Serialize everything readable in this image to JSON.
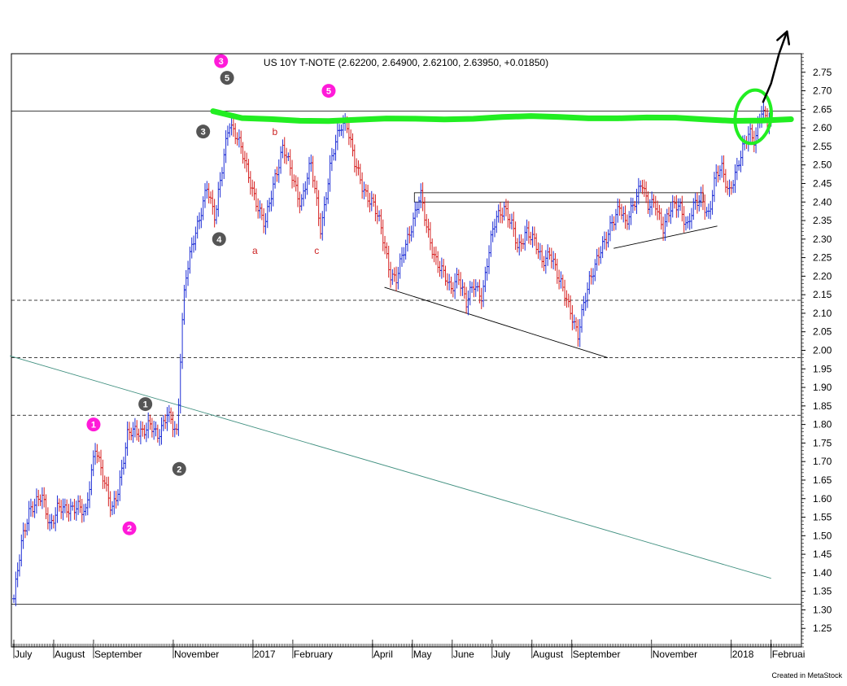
{
  "chart_data": {
    "type": "bar",
    "style": "OHLC price bars (blue = up, red = down)",
    "title": "US 10Y T-NOTE (2.62200, 2.64900, 2.62100, 2.63950, +0.01850)",
    "instrument": "US 10Y T-NOTE",
    "last_bar": {
      "open": 2.622,
      "high": 2.649,
      "low": 2.621,
      "close": 2.6395,
      "change": 0.0185
    },
    "ylim": [
      1.2,
      2.8
    ],
    "yticks": [
      1.25,
      1.3,
      1.35,
      1.4,
      1.45,
      1.5,
      1.55,
      1.6,
      1.65,
      1.7,
      1.75,
      1.8,
      1.85,
      1.9,
      1.95,
      2.0,
      2.05,
      2.1,
      2.15,
      2.2,
      2.25,
      2.3,
      2.35,
      2.4,
      2.45,
      2.5,
      2.55,
      2.6,
      2.65,
      2.7,
      2.75
    ],
    "ytick_labels": [
      "1.25",
      "1.30",
      "1.35",
      "1.40",
      "1.45",
      "1.50",
      "1.55",
      "1.60",
      "1.65",
      "1.70",
      "1.75",
      "1.80",
      "1.85",
      "1.90",
      "1.95",
      "2.00",
      "2.05",
      "2.10",
      "2.15",
      "2.20",
      "2.25",
      "2.30",
      "2.35",
      "2.40",
      "2.45",
      "2.50",
      "2.55",
      "2.60",
      "2.65",
      "2.70",
      "2.75"
    ],
    "y_axis_position": "right",
    "grid": false,
    "months": [
      {
        "label": "July",
        "t": 0.0
      },
      {
        "label": "August",
        "t": 1.0
      },
      {
        "label": "September",
        "t": 2.0
      },
      {
        "label": "November",
        "t": 4.0
      },
      {
        "label": "2017",
        "t": 6.0
      },
      {
        "label": "February",
        "t": 7.0
      },
      {
        "label": "April",
        "t": 9.0
      },
      {
        "label": "May",
        "t": 10.0
      },
      {
        "label": "June",
        "t": 11.0
      },
      {
        "label": "July",
        "t": 12.0
      },
      {
        "label": "August",
        "t": 13.0
      },
      {
        "label": "September",
        "t": 14.0
      },
      {
        "label": "November",
        "t": 16.0
      },
      {
        "label": "2018",
        "t": 18.0
      },
      {
        "label": "Februai",
        "t": 19.0
      }
    ],
    "price_path": [
      [
        0.0,
        1.33
      ],
      [
        0.2,
        1.48
      ],
      [
        0.4,
        1.58
      ],
      [
        0.7,
        1.6
      ],
      [
        0.9,
        1.53
      ],
      [
        1.1,
        1.58
      ],
      [
        1.3,
        1.56
      ],
      [
        1.6,
        1.59
      ],
      [
        1.8,
        1.55
      ],
      [
        2.05,
        1.75
      ],
      [
        2.3,
        1.63
      ],
      [
        2.45,
        1.56
      ],
      [
        2.6,
        1.62
      ],
      [
        2.85,
        1.77
      ],
      [
        3.1,
        1.78
      ],
      [
        3.4,
        1.8
      ],
      [
        3.6,
        1.76
      ],
      [
        3.85,
        1.84
      ],
      [
        4.1,
        1.76
      ],
      [
        4.2,
        2.03
      ],
      [
        4.3,
        2.2
      ],
      [
        4.45,
        2.28
      ],
      [
        4.65,
        2.34
      ],
      [
        4.85,
        2.45
      ],
      [
        5.05,
        2.36
      ],
      [
        5.25,
        2.5
      ],
      [
        5.4,
        2.62
      ],
      [
        5.6,
        2.58
      ],
      [
        5.85,
        2.48
      ],
      [
        6.1,
        2.4
      ],
      [
        6.3,
        2.33
      ],
      [
        6.55,
        2.47
      ],
      [
        6.75,
        2.55
      ],
      [
        7.0,
        2.46
      ],
      [
        7.2,
        2.4
      ],
      [
        7.45,
        2.5
      ],
      [
        7.7,
        2.33
      ],
      [
        7.95,
        2.5
      ],
      [
        8.2,
        2.61
      ],
      [
        8.35,
        2.62
      ],
      [
        8.55,
        2.5
      ],
      [
        8.75,
        2.44
      ],
      [
        9.0,
        2.4
      ],
      [
        9.2,
        2.33
      ],
      [
        9.45,
        2.21
      ],
      [
        9.6,
        2.19
      ],
      [
        9.85,
        2.29
      ],
      [
        10.0,
        2.35
      ],
      [
        10.2,
        2.42
      ],
      [
        10.35,
        2.33
      ],
      [
        10.55,
        2.26
      ],
      [
        10.75,
        2.21
      ],
      [
        10.95,
        2.16
      ],
      [
        11.15,
        2.21
      ],
      [
        11.35,
        2.12
      ],
      [
        11.55,
        2.18
      ],
      [
        11.75,
        2.15
      ],
      [
        11.95,
        2.28
      ],
      [
        12.1,
        2.36
      ],
      [
        12.3,
        2.39
      ],
      [
        12.5,
        2.33
      ],
      [
        12.65,
        2.27
      ],
      [
        12.85,
        2.33
      ],
      [
        13.05,
        2.29
      ],
      [
        13.25,
        2.24
      ],
      [
        13.45,
        2.27
      ],
      [
        13.65,
        2.19
      ],
      [
        13.85,
        2.15
      ],
      [
        14.0,
        2.1
      ],
      [
        14.15,
        2.03
      ],
      [
        14.3,
        2.12
      ],
      [
        14.45,
        2.2
      ],
      [
        14.65,
        2.25
      ],
      [
        14.85,
        2.29
      ],
      [
        15.0,
        2.35
      ],
      [
        15.2,
        2.39
      ],
      [
        15.35,
        2.33
      ],
      [
        15.55,
        2.4
      ],
      [
        15.75,
        2.46
      ],
      [
        15.9,
        2.38
      ],
      [
        16.1,
        2.4
      ],
      [
        16.3,
        2.33
      ],
      [
        16.5,
        2.38
      ],
      [
        16.7,
        2.4
      ],
      [
        16.9,
        2.33
      ],
      [
        17.05,
        2.38
      ],
      [
        17.25,
        2.42
      ],
      [
        17.45,
        2.36
      ],
      [
        17.55,
        2.44
      ],
      [
        17.75,
        2.5
      ],
      [
        17.95,
        2.43
      ],
      [
        18.15,
        2.48
      ],
      [
        18.3,
        2.55
      ],
      [
        18.45,
        2.6
      ],
      [
        18.6,
        2.56
      ],
      [
        18.75,
        2.64
      ],
      [
        18.9,
        2.62
      ],
      [
        19.0,
        2.64
      ]
    ],
    "hlines": [
      {
        "y": 2.645,
        "style": "solid",
        "color": "#000000"
      },
      {
        "y": 2.135,
        "style": "dashed",
        "color": "#000000"
      },
      {
        "y": 1.98,
        "style": "dashed",
        "color": "#000000"
      },
      {
        "y": 1.825,
        "style": "dashed",
        "color": "#000000"
      },
      {
        "y": 1.315,
        "style": "solid",
        "color": "#000000"
      }
    ],
    "trendlines": [
      {
        "t1": -0.1,
        "y1": 1.985,
        "t2": 19.0,
        "y2": 1.385,
        "color": "#3f8f7f"
      },
      {
        "t1": 9.3,
        "y1": 2.17,
        "t2": 14.9,
        "y2": 1.98,
        "color": "#000000"
      },
      {
        "t1": 15.05,
        "y1": 2.275,
        "t2": 17.65,
        "y2": 2.335,
        "color": "#000000"
      }
    ],
    "boxes": [
      {
        "t1": 10.05,
        "t2": 17.3,
        "y_top": 2.425,
        "y_bot": 2.4
      }
    ],
    "resistance_band": {
      "y": 2.625,
      "t_start": 5.0,
      "t_end": 19.5,
      "color": "#22ee22"
    },
    "highlight_ellipse": {
      "t_center": 18.55,
      "y_center": 2.63,
      "color": "#22ee22"
    },
    "forecast_arrow": {
      "points": [
        [
          18.8,
          2.67
        ],
        [
          19.0,
          2.72
        ],
        [
          19.2,
          2.8
        ],
        [
          19.4,
          2.86
        ]
      ],
      "color": "#000000"
    },
    "wave_labels": [
      {
        "text": "1",
        "kind": "circle",
        "color": "#ff1ad9",
        "t": 2.0,
        "y": 1.8
      },
      {
        "text": "2",
        "kind": "circle",
        "color": "#ff1ad9",
        "t": 2.9,
        "y": 1.52
      },
      {
        "text": "3",
        "kind": "circle",
        "color": "#ff1ad9",
        "t": 5.2,
        "y": 2.78
      },
      {
        "text": "5",
        "kind": "circle",
        "color": "#ff1ad9",
        "t": 7.9,
        "y": 2.7
      },
      {
        "text": "1",
        "kind": "circle",
        "color": "#555555",
        "t": 3.3,
        "y": 1.855
      },
      {
        "text": "2",
        "kind": "circle",
        "color": "#555555",
        "t": 4.15,
        "y": 1.68
      },
      {
        "text": "3",
        "kind": "circle",
        "color": "#555555",
        "t": 4.75,
        "y": 2.59
      },
      {
        "text": "5",
        "kind": "circle",
        "color": "#555555",
        "t": 5.35,
        "y": 2.735
      },
      {
        "text": "4",
        "kind": "circle",
        "color": "#555555",
        "t": 5.15,
        "y": 2.3
      },
      {
        "text": "a",
        "kind": "text",
        "color": "#cc2222",
        "t": 6.05,
        "y": 2.26
      },
      {
        "text": "b",
        "kind": "text",
        "color": "#cc2222",
        "t": 6.55,
        "y": 2.58
      },
      {
        "text": "c",
        "kind": "text",
        "color": "#cc2222",
        "t": 7.6,
        "y": 2.26
      }
    ],
    "credit": "Created in MetaStock"
  }
}
